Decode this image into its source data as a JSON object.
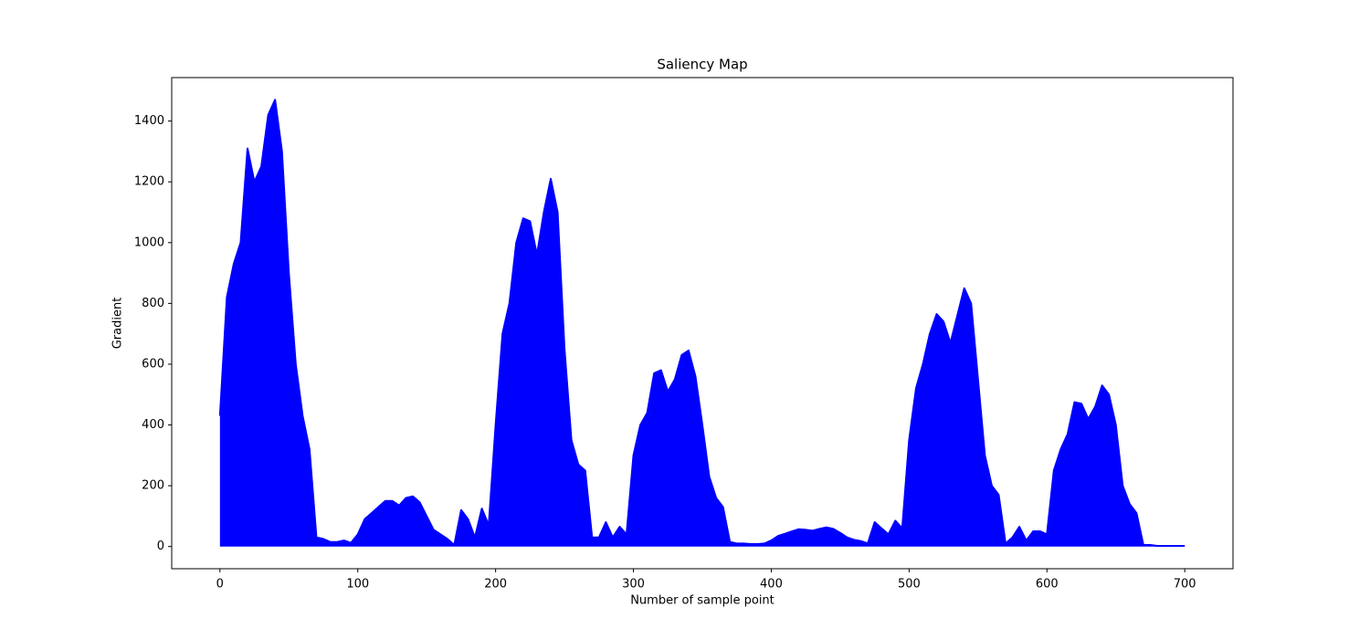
{
  "chart_data": {
    "type": "area",
    "title": "Saliency Map",
    "x_label": "Number of sample point",
    "y_label": "Gradient",
    "color": "#0000ff",
    "grid": false,
    "x": [
      0,
      5,
      10,
      15,
      20,
      25,
      30,
      35,
      40,
      45,
      50,
      55,
      60,
      65,
      70,
      75,
      80,
      85,
      90,
      95,
      100,
      105,
      110,
      115,
      120,
      125,
      130,
      135,
      140,
      145,
      150,
      155,
      160,
      165,
      170,
      175,
      180,
      185,
      190,
      195,
      200,
      205,
      210,
      215,
      220,
      225,
      230,
      235,
      240,
      245,
      250,
      255,
      260,
      265,
      270,
      275,
      280,
      285,
      290,
      295,
      300,
      305,
      310,
      315,
      320,
      325,
      330,
      335,
      340,
      345,
      350,
      355,
      360,
      365,
      370,
      375,
      380,
      385,
      390,
      395,
      400,
      405,
      410,
      415,
      420,
      425,
      430,
      435,
      440,
      445,
      450,
      455,
      460,
      465,
      470,
      475,
      480,
      485,
      490,
      495,
      500,
      505,
      510,
      515,
      520,
      525,
      530,
      535,
      540,
      545,
      550,
      555,
      560,
      565,
      570,
      575,
      580,
      585,
      590,
      595,
      600,
      605,
      610,
      615,
      620,
      625,
      630,
      635,
      640,
      645,
      650,
      655,
      660,
      665,
      670,
      675,
      680,
      685,
      690,
      695,
      700
    ],
    "values": [
      430,
      820,
      930,
      1000,
      1310,
      1200,
      1250,
      1420,
      1470,
      1300,
      900,
      600,
      430,
      320,
      30,
      25,
      15,
      15,
      20,
      12,
      40,
      90,
      110,
      130,
      150,
      150,
      135,
      160,
      165,
      145,
      100,
      55,
      40,
      25,
      5,
      120,
      90,
      30,
      125,
      70,
      400,
      700,
      800,
      1000,
      1080,
      1070,
      960,
      1100,
      1210,
      1100,
      650,
      350,
      270,
      250,
      30,
      30,
      80,
      30,
      65,
      40,
      300,
      400,
      440,
      570,
      580,
      510,
      550,
      630,
      645,
      560,
      400,
      230,
      160,
      130,
      15,
      10,
      10,
      8,
      8,
      10,
      20,
      35,
      42,
      50,
      57,
      55,
      52,
      58,
      63,
      58,
      45,
      30,
      22,
      18,
      10,
      80,
      60,
      40,
      85,
      60,
      350,
      520,
      600,
      700,
      765,
      740,
      670,
      760,
      850,
      800,
      550,
      300,
      200,
      170,
      10,
      30,
      65,
      20,
      50,
      50,
      40,
      250,
      320,
      370,
      475,
      470,
      420,
      460,
      530,
      500,
      400,
      200,
      140,
      110,
      5,
      5,
      2,
      2,
      2,
      2,
      2
    ],
    "xlim": [
      -35,
      735
    ],
    "ylim": [
      -73,
      1543
    ],
    "xticks": [
      0,
      100,
      200,
      300,
      400,
      500,
      600,
      700
    ],
    "yticks": [
      0,
      200,
      400,
      600,
      800,
      1000,
      1200,
      1400
    ]
  }
}
